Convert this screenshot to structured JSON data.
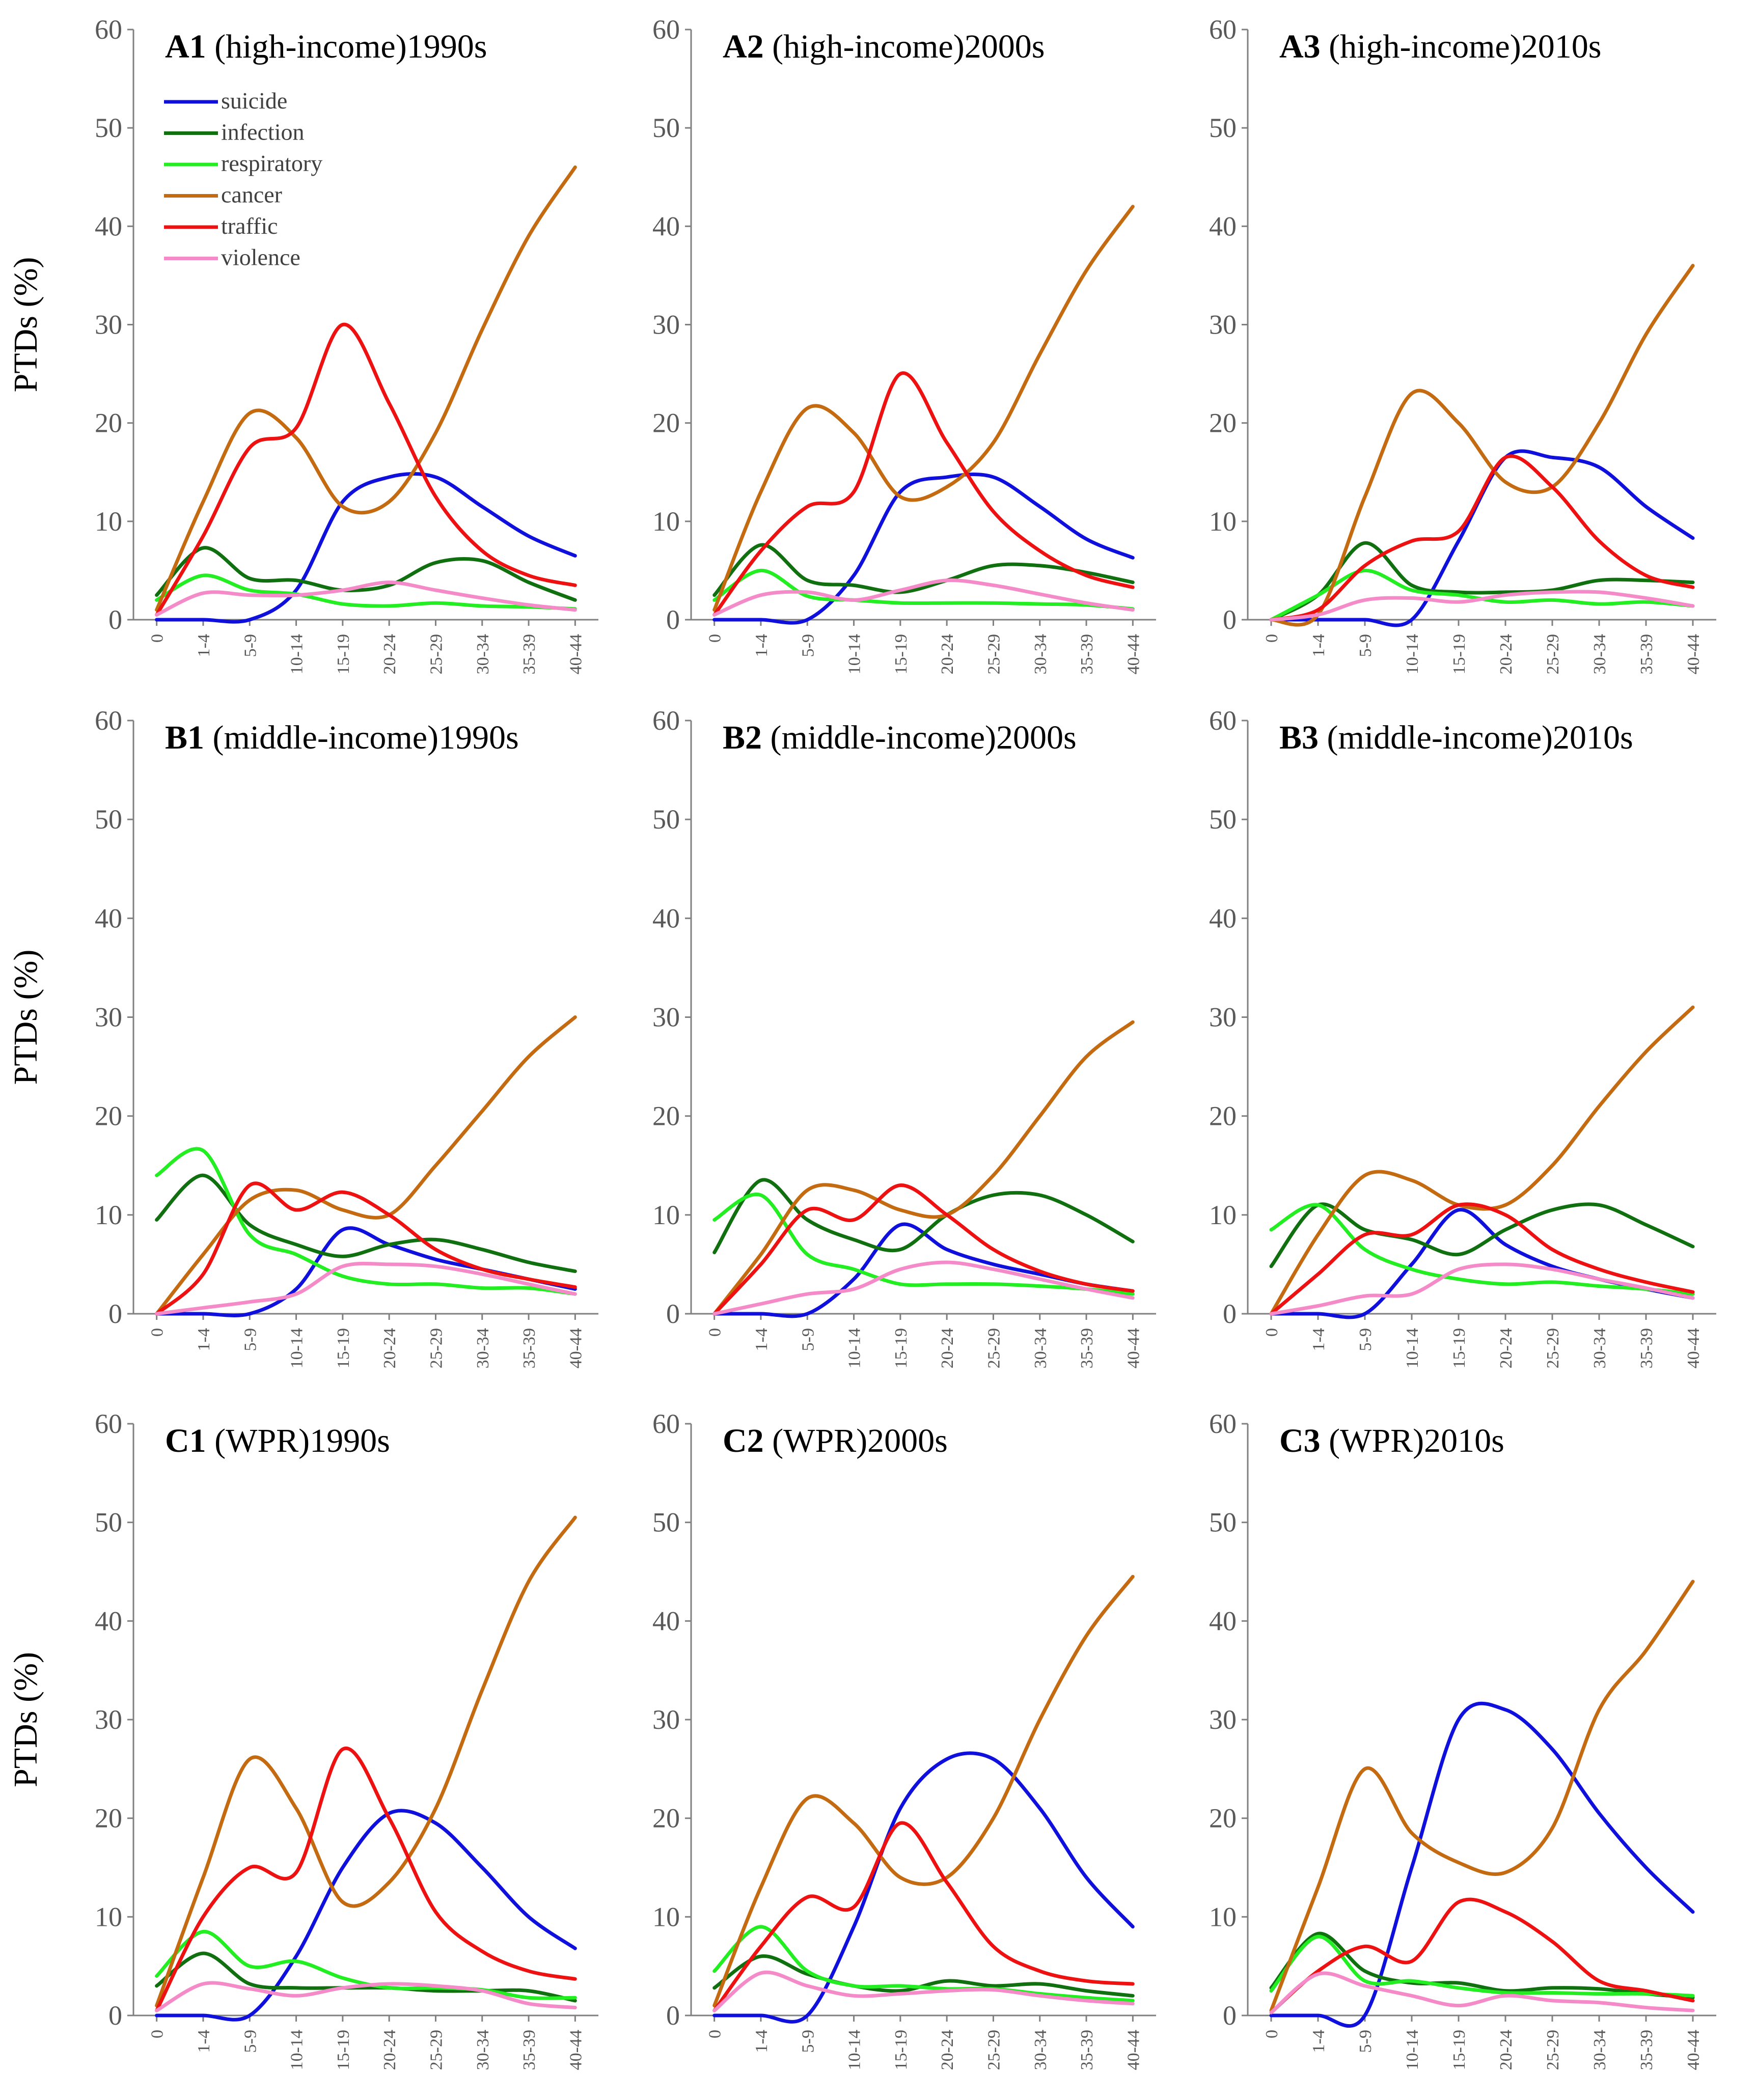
{
  "chart_data": {
    "type": "line",
    "ylabel": "PTDs (%)",
    "ylim": [
      0,
      60
    ],
    "yticks": [
      0,
      10,
      20,
      30,
      40,
      50,
      60
    ],
    "categories": [
      "0",
      "1-4",
      "5-9",
      "10-14",
      "15-19",
      "20-24",
      "25-29",
      "30-34",
      "35-39",
      "40-44"
    ],
    "legend": {
      "placement": "top-left of panel A1",
      "entries": [
        {
          "name": "suicide",
          "color": "#1010dd"
        },
        {
          "name": "infection",
          "color": "#107010"
        },
        {
          "name": "respiratory",
          "color": "#22ee22"
        },
        {
          "name": "cancer",
          "color": "#c46a10"
        },
        {
          "name": "traffic",
          "color": "#ee1111"
        },
        {
          "name": "violence",
          "color": "#f58ac8"
        }
      ]
    },
    "panels": [
      {
        "id": "A1",
        "group": "(high-income)",
        "decade": "1990s",
        "series": [
          {
            "name": "suicide",
            "values": [
              0,
              0,
              0,
              3,
              12,
              14.5,
              14.5,
              11.5,
              8.5,
              6.5
            ]
          },
          {
            "name": "infection",
            "values": [
              2.5,
              7.3,
              4.2,
              4,
              3,
              3.5,
              5.8,
              6,
              3.8,
              2
            ]
          },
          {
            "name": "respiratory",
            "values": [
              2,
              4.5,
              3,
              2.6,
              1.6,
              1.4,
              1.7,
              1.4,
              1.3,
              1.1
            ]
          },
          {
            "name": "cancer",
            "values": [
              1,
              12,
              21,
              18.5,
              11.5,
              12,
              19,
              29.5,
              39,
              46
            ]
          },
          {
            "name": "traffic",
            "values": [
              0.5,
              8.5,
              17.5,
              19.5,
              30,
              22,
              12.5,
              7,
              4.5,
              3.5
            ]
          },
          {
            "name": "violence",
            "values": [
              0.5,
              2.7,
              2.5,
              2.5,
              3,
              3.8,
              3,
              2.2,
              1.5,
              1
            ]
          }
        ]
      },
      {
        "id": "A2",
        "group": "(high-income)",
        "decade": "2000s",
        "series": [
          {
            "name": "suicide",
            "values": [
              0,
              0,
              0,
              4.5,
              13,
              14.5,
              14.5,
              11.5,
              8.2,
              6.3
            ]
          },
          {
            "name": "infection",
            "values": [
              2.5,
              7.6,
              4,
              3.5,
              2.8,
              4,
              5.5,
              5.5,
              4.8,
              3.8
            ]
          },
          {
            "name": "respiratory",
            "values": [
              2,
              5,
              2.4,
              2,
              1.7,
              1.7,
              1.7,
              1.6,
              1.5,
              1.1
            ]
          },
          {
            "name": "cancer",
            "values": [
              1,
              13,
              21.5,
              19,
              12.5,
              13.5,
              18,
              27,
              35.5,
              42
            ]
          },
          {
            "name": "traffic",
            "values": [
              0.5,
              7,
              11.5,
              13,
              25,
              18,
              11,
              7,
              4.5,
              3.3
            ]
          },
          {
            "name": "violence",
            "values": [
              0.5,
              2.5,
              2.8,
              2,
              3,
              4,
              3.5,
              2.6,
              1.7,
              1
            ]
          }
        ]
      },
      {
        "id": "A3",
        "group": "(high-income)",
        "decade": "2010s",
        "series": [
          {
            "name": "suicide",
            "values": [
              0,
              0,
              0,
              0,
              8,
              16.5,
              16.5,
              15.5,
              11.5,
              8.3
            ]
          },
          {
            "name": "infection",
            "values": [
              0,
              2.5,
              7.8,
              3.5,
              2.8,
              2.8,
              3,
              4,
              4,
              3.8
            ]
          },
          {
            "name": "respiratory",
            "values": [
              0,
              2.5,
              5,
              3,
              2.5,
              1.8,
              2,
              1.6,
              1.8,
              1.4
            ]
          },
          {
            "name": "cancer",
            "values": [
              0,
              0.5,
              12.5,
              23,
              20,
              14,
              13.5,
              20,
              29,
              36
            ]
          },
          {
            "name": "traffic",
            "values": [
              0,
              1,
              5.5,
              8,
              9,
              16.5,
              13.5,
              8,
              4.5,
              3.3
            ]
          },
          {
            "name": "violence",
            "values": [
              0,
              0.5,
              2,
              2.2,
              1.8,
              2.5,
              2.8,
              2.8,
              2.2,
              1.4
            ]
          }
        ]
      },
      {
        "id": "B1",
        "group": "(middle-income)",
        "decade": "1990s",
        "series": [
          {
            "name": "suicide",
            "values": [
              0,
              0,
              0,
              2.5,
              8.5,
              7,
              5.5,
              4.5,
              3.5,
              2.5
            ]
          },
          {
            "name": "infection",
            "values": [
              9.5,
              14,
              9,
              7,
              5.8,
              7,
              7.5,
              6.5,
              5.2,
              4.3
            ]
          },
          {
            "name": "respiratory",
            "values": [
              14,
              16.5,
              8,
              6,
              3.8,
              3,
              3,
              2.6,
              2.6,
              2
            ]
          },
          {
            "name": "cancer",
            "values": [
              0,
              6,
              11.5,
              12.5,
              10.5,
              10,
              15,
              20.5,
              26,
              30
            ]
          },
          {
            "name": "traffic",
            "values": [
              0,
              4,
              13,
              10.5,
              12.3,
              10,
              6.5,
              4.5,
              3.5,
              2.7
            ]
          },
          {
            "name": "violence",
            "values": [
              0,
              0.6,
              1.2,
              2,
              4.8,
              5,
              4.8,
              4,
              3,
              2
            ]
          }
        ]
      },
      {
        "id": "B2",
        "group": "(middle-income)",
        "decade": "2000s",
        "series": [
          {
            "name": "suicide",
            "values": [
              0,
              0,
              0,
              3.5,
              9,
              6.5,
              5,
              4,
              3,
              2.3
            ]
          },
          {
            "name": "infection",
            "values": [
              6.2,
              13.5,
              9.5,
              7.5,
              6.5,
              10,
              12,
              12,
              10,
              7.3
            ]
          },
          {
            "name": "respiratory",
            "values": [
              9.5,
              12,
              6,
              4.5,
              3,
              3,
              3,
              2.8,
              2.5,
              2
            ]
          },
          {
            "name": "cancer",
            "values": [
              0,
              6,
              12.5,
              12.5,
              10.5,
              10,
              14,
              20,
              26,
              29.5
            ]
          },
          {
            "name": "traffic",
            "values": [
              0,
              5,
              10.5,
              9.5,
              13,
              10,
              6.5,
              4.3,
              3,
              2.3
            ]
          },
          {
            "name": "violence",
            "values": [
              0,
              1,
              2,
              2.5,
              4.5,
              5.2,
              4.5,
              3.5,
              2.5,
              1.6
            ]
          }
        ]
      },
      {
        "id": "B3",
        "group": "(middle-income)",
        "decade": "2010s",
        "series": [
          {
            "name": "suicide",
            "values": [
              0,
              0,
              0,
              5,
              10.5,
              7,
              4.8,
              3.5,
              2.5,
              1.6
            ]
          },
          {
            "name": "infection",
            "values": [
              4.8,
              11,
              8.5,
              7.5,
              6,
              8.5,
              10.5,
              11,
              9,
              6.8
            ]
          },
          {
            "name": "respiratory",
            "values": [
              8.5,
              11,
              6.5,
              4.5,
              3.5,
              3,
              3.2,
              2.8,
              2.5,
              2
            ]
          },
          {
            "name": "cancer",
            "values": [
              0,
              8,
              14,
              13.5,
              11,
              11,
              15,
              21,
              26.5,
              31
            ]
          },
          {
            "name": "traffic",
            "values": [
              0,
              4,
              8,
              8,
              11,
              10,
              6.5,
              4.5,
              3.2,
              2.2
            ]
          },
          {
            "name": "violence",
            "values": [
              0,
              0.8,
              1.8,
              2,
              4.5,
              5,
              4.5,
              3.5,
              2.6,
              1.6
            ]
          }
        ]
      },
      {
        "id": "C1",
        "group": "(WPR)",
        "decade": "1990s",
        "series": [
          {
            "name": "suicide",
            "values": [
              0,
              0,
              0,
              6,
              15,
              20.5,
              19.5,
              15,
              10,
              6.8
            ]
          },
          {
            "name": "infection",
            "values": [
              3,
              6.3,
              3.2,
              2.8,
              2.8,
              2.8,
              2.5,
              2.5,
              2.5,
              1.5
            ]
          },
          {
            "name": "respiratory",
            "values": [
              4,
              8.5,
              5,
              5.5,
              3.8,
              2.8,
              2.8,
              2.6,
              1.8,
              1.8
            ]
          },
          {
            "name": "cancer",
            "values": [
              1,
              14,
              26,
              21,
              11.5,
              13.5,
              21,
              33,
              44,
              50.5
            ]
          },
          {
            "name": "traffic",
            "values": [
              0.5,
              10,
              15,
              14.5,
              27,
              20,
              10.5,
              6.5,
              4.5,
              3.7
            ]
          },
          {
            "name": "violence",
            "values": [
              0.5,
              3.2,
              2.7,
              2,
              2.8,
              3.2,
              3,
              2.5,
              1.2,
              0.8
            ]
          }
        ]
      },
      {
        "id": "C2",
        "group": "(WPR)",
        "decade": "2000s",
        "series": [
          {
            "name": "suicide",
            "values": [
              0,
              0,
              0,
              9,
              21,
              26,
              26,
              21,
              14,
              9
            ]
          },
          {
            "name": "infection",
            "values": [
              2.8,
              6,
              4.2,
              3,
              2.5,
              3.5,
              3,
              3.2,
              2.5,
              2
            ]
          },
          {
            "name": "respiratory",
            "values": [
              4.5,
              9,
              4.5,
              3,
              3,
              2.7,
              2.7,
              2.2,
              1.8,
              1.5
            ]
          },
          {
            "name": "cancer",
            "values": [
              1,
              13,
              22,
              19.5,
              14,
              14,
              20,
              30,
              38.5,
              44.5
            ]
          },
          {
            "name": "traffic",
            "values": [
              0.5,
              7,
              12,
              11,
              19.5,
              13.5,
              7,
              4.5,
              3.5,
              3.2
            ]
          },
          {
            "name": "violence",
            "values": [
              0.5,
              4.3,
              3,
              2,
              2.2,
              2.5,
              2.6,
              2,
              1.5,
              1.2
            ]
          }
        ]
      },
      {
        "id": "C3",
        "group": "(WPR)",
        "decade": "2010s",
        "series": [
          {
            "name": "suicide",
            "values": [
              0,
              0,
              0,
              15,
              30,
              31,
              27,
              20.5,
              15,
              10.5
            ]
          },
          {
            "name": "infection",
            "values": [
              2.8,
              8.3,
              4.5,
              3.3,
              3.3,
              2.5,
              2.8,
              2.7,
              2.2,
              1.8
            ]
          },
          {
            "name": "respiratory",
            "values": [
              2.5,
              8,
              3.5,
              3.5,
              2.8,
              2.3,
              2.3,
              2.2,
              2.2,
              2
            ]
          },
          {
            "name": "cancer",
            "values": [
              0.5,
              13,
              25,
              18.5,
              15.5,
              14.5,
              19,
              31,
              37,
              44
            ]
          },
          {
            "name": "traffic",
            "values": [
              0.3,
              4.5,
              7,
              5.5,
              11.5,
              10.5,
              7.5,
              3.5,
              2.5,
              1.5
            ]
          },
          {
            "name": "violence",
            "values": [
              0.3,
              4.2,
              3,
              2,
              1,
              2,
              1.5,
              1.3,
              0.8,
              0.5
            ]
          }
        ]
      }
    ]
  }
}
